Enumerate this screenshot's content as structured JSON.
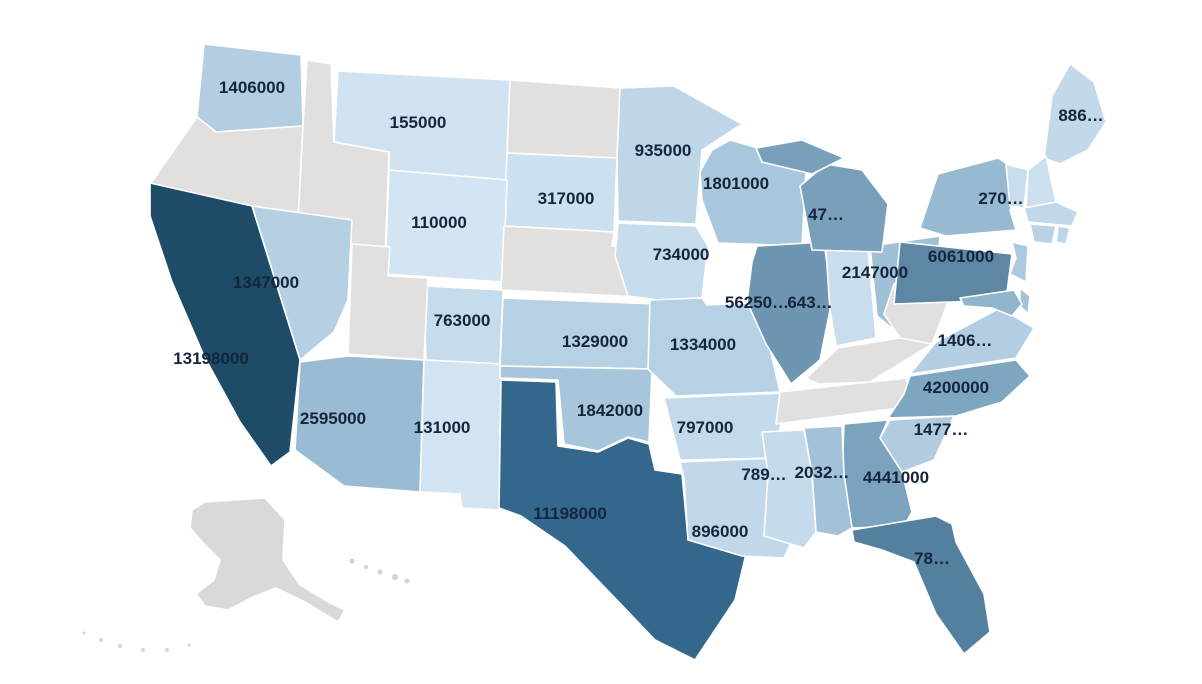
{
  "page": {
    "background": "#ffffff"
  },
  "map": {
    "type": "choropleth",
    "region": "United States",
    "label_color": "#15253c",
    "border_color": "#ffffff",
    "no_data_color": "#e2e0de",
    "states": {
      "WA": {
        "name": "Washington",
        "label": "1406000",
        "value": 1406000,
        "color": "#b3cee2"
      },
      "OR": {
        "name": "Oregon",
        "label": "",
        "value": null,
        "color": "#e2e0de"
      },
      "CA": {
        "name": "California",
        "label": "13198000",
        "value": 13198000,
        "color": "#1d4b68"
      },
      "NV": {
        "name": "Nevada",
        "label": "1347000",
        "value": 1347000,
        "color": "#b5cfe3"
      },
      "ID": {
        "name": "Idaho",
        "label": "",
        "value": null,
        "color": "#e2e0de"
      },
      "MT": {
        "name": "Montana",
        "label": "155000",
        "value": 155000,
        "color": "#d1e3f1"
      },
      "WY": {
        "name": "Wyoming",
        "label": "110000",
        "value": 110000,
        "color": "#d3e4f2"
      },
      "UT": {
        "name": "Utah",
        "label": "",
        "value": null,
        "color": "#e2e0de"
      },
      "AZ": {
        "name": "Arizona",
        "label": "2595000",
        "value": 2595000,
        "color": "#99bbd3"
      },
      "NM": {
        "name": "New Mexico",
        "label": "131000",
        "value": 131000,
        "color": "#d2e3f1"
      },
      "CO": {
        "name": "Colorado",
        "label": "763000",
        "value": 763000,
        "color": "#c6dbec"
      },
      "ND": {
        "name": "North Dakota",
        "label": "",
        "value": null,
        "color": "#e2e0de"
      },
      "SD": {
        "name": "South Dakota",
        "label": "317000",
        "value": 317000,
        "color": "#cde0ef"
      },
      "NE": {
        "name": "Nebraska",
        "label": "",
        "value": null,
        "color": "#e2e0de"
      },
      "KS": {
        "name": "Kansas",
        "label": "1329000",
        "value": 1329000,
        "color": "#b6d0e4"
      },
      "OK": {
        "name": "Oklahoma",
        "label": "1842000",
        "value": 1842000,
        "color": "#a7c5db"
      },
      "TX": {
        "name": "Texas",
        "label": "11198000",
        "value": 11198000,
        "color": "#33678c"
      },
      "MN": {
        "name": "Minnesota",
        "label": "935000",
        "value": 935000,
        "color": "#bed6e8"
      },
      "IA": {
        "name": "Iowa",
        "label": "734000",
        "value": 734000,
        "color": "#c7dced"
      },
      "MO": {
        "name": "Missouri",
        "label": "1334000",
        "value": 1334000,
        "color": "#b6d0e4"
      },
      "AR": {
        "name": "Arkansas",
        "label": "797000",
        "value": 797000,
        "color": "#c4daeb"
      },
      "LA": {
        "name": "Louisiana",
        "label": "896000",
        "value": 896000,
        "color": "#c1d8ea"
      },
      "WI": {
        "name": "Wisconsin",
        "label": "1801000",
        "value": 1801000,
        "color": "#a8c6dc"
      },
      "IL": {
        "name": "Illinois",
        "label": "56250…",
        "value": null,
        "color": "#6e96b2"
      },
      "IN": {
        "name": "Indiana",
        "label": "643…",
        "value": null,
        "color": "#c9ddee"
      },
      "OH": {
        "name": "Ohio",
        "label": "2147000",
        "value": 2147000,
        "color": "#a0c0d7"
      },
      "MI": {
        "name": "Michigan",
        "label": "47…",
        "value": null,
        "color": "#78a0bb"
      },
      "KY": {
        "name": "Kentucky",
        "label": "",
        "value": null,
        "color": "#e2e0de"
      },
      "TN": {
        "name": "Tennessee",
        "label": "",
        "value": null,
        "color": "#e2e0de"
      },
      "MS": {
        "name": "Mississippi",
        "label": "789…",
        "value": null,
        "color": "#c5dbec"
      },
      "AL": {
        "name": "Alabama",
        "label": "2032…",
        "value": null,
        "color": "#a3c2d9"
      },
      "GA": {
        "name": "Georgia",
        "label": "4441000",
        "value": 4441000,
        "color": "#7ba3bd"
      },
      "FL": {
        "name": "Florida",
        "label": "78…",
        "value": null,
        "color": "#54809f"
      },
      "SC": {
        "name": "South Carolina",
        "label": "1477…",
        "value": null,
        "color": "#b1cce1"
      },
      "NC": {
        "name": "North Carolina",
        "label": "4200000",
        "value": 4200000,
        "color": "#7fa6c0"
      },
      "VA": {
        "name": "Virginia",
        "label": "1406…",
        "value": null,
        "color": "#b3cee2"
      },
      "WV": {
        "name": "West Virginia",
        "label": "",
        "value": null,
        "color": "#e2e0de"
      },
      "PA": {
        "name": "Pennsylvania",
        "label": "6061000",
        "value": 6061000,
        "color": "#5e87a5"
      },
      "NY": {
        "name": "New York",
        "label": "270…",
        "value": null,
        "color": "#97b9d2"
      },
      "NJ": {
        "name": "New Jersey",
        "label": "",
        "value": null,
        "color": "#accadf"
      },
      "DE": {
        "name": "Delaware",
        "label": "",
        "value": null,
        "color": "#a3c3d8"
      },
      "MD": {
        "name": "Maryland",
        "label": "",
        "value": null,
        "color": "#92b5ce"
      },
      "VT": {
        "name": "Vermont",
        "label": "",
        "value": null,
        "color": "#c8ddee"
      },
      "NH": {
        "name": "New Hampshire",
        "label": "",
        "value": null,
        "color": "#cde0ef"
      },
      "MA": {
        "name": "Massachusetts",
        "label": "",
        "value": null,
        "color": "#c2d8e9"
      },
      "CT": {
        "name": "Connecticut",
        "label": "",
        "value": null,
        "color": "#b9d2e6"
      },
      "RI": {
        "name": "Rhode Island",
        "label": "",
        "value": null,
        "color": "#bed5e8"
      },
      "ME": {
        "name": "Maine",
        "label": "886…",
        "value": null,
        "color": "#c2d9ea"
      },
      "AK": {
        "name": "Alaska",
        "label": "",
        "value": null,
        "color": "#d9d9d9"
      },
      "HI": {
        "name": "Hawaii",
        "label": "",
        "value": null,
        "color": "#d4d4d4"
      }
    }
  }
}
